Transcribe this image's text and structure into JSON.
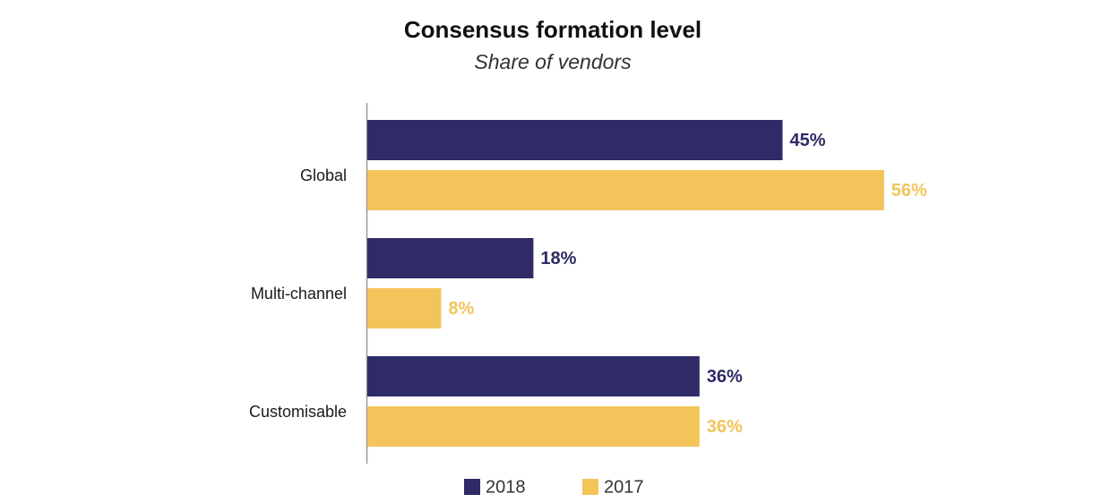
{
  "chart_data": {
    "type": "bar",
    "orientation": "horizontal",
    "title": "Consensus formation level",
    "subtitle": "Share of vendors",
    "categories": [
      "Global",
      "Multi-channel",
      "Customisable"
    ],
    "series": [
      {
        "name": "2018",
        "values": [
          45,
          18,
          36
        ],
        "labels": [
          "45%",
          "18%",
          "36%"
        ],
        "color": "#2e2b66"
      },
      {
        "name": "2017",
        "values": [
          56,
          8,
          36
        ],
        "labels": [
          "56%",
          "8%",
          "36%"
        ],
        "color": "#f2c45a"
      }
    ],
    "xlim": [
      0,
      100
    ],
    "legend_position": "bottom"
  }
}
